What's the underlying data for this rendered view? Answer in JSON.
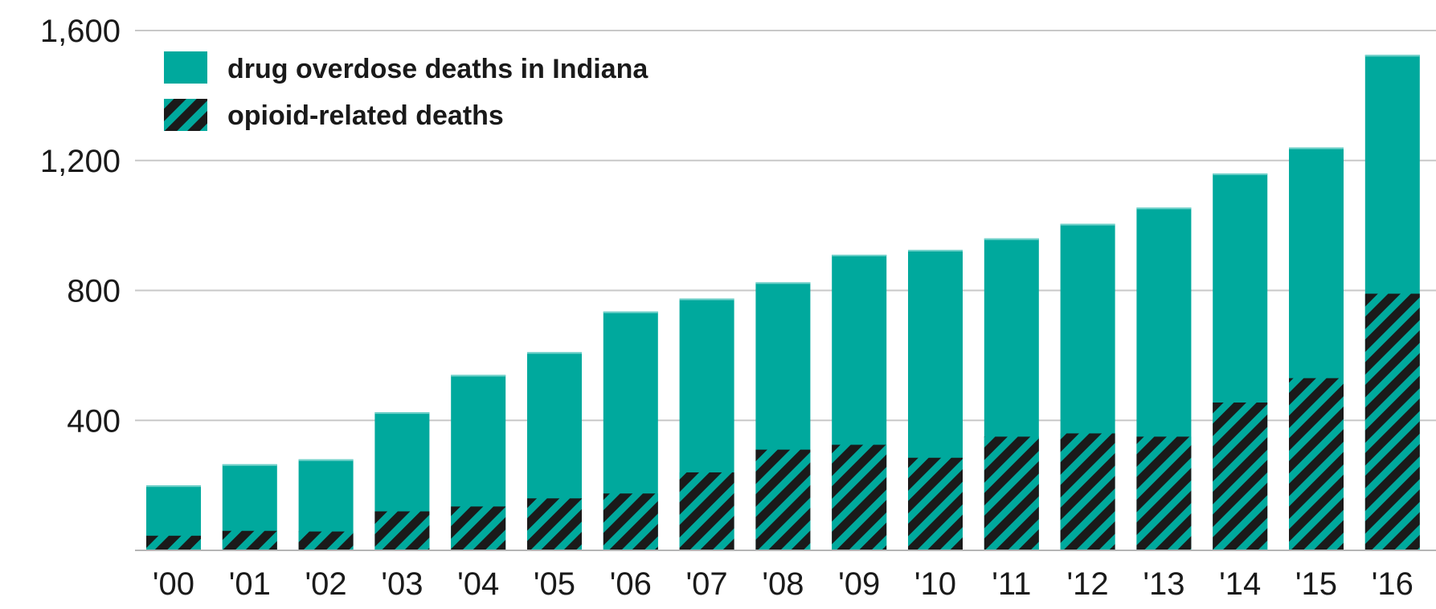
{
  "chart_data": {
    "type": "bar",
    "title": "",
    "xlabel": "",
    "ylabel": "",
    "categories": [
      "'00",
      "'01",
      "'02",
      "'03",
      "'04",
      "'05",
      "'06",
      "'07",
      "'08",
      "'09",
      "'10",
      "'11",
      "'12",
      "'13",
      "'14",
      "'15",
      "'16"
    ],
    "series": [
      {
        "name": "drug overdose deaths in Indiana",
        "color": "#00a99d",
        "pattern": "solid",
        "values": [
          200,
          265,
          280,
          425,
          540,
          610,
          735,
          775,
          825,
          910,
          925,
          960,
          1005,
          1055,
          1160,
          1240,
          1525
        ]
      },
      {
        "name": "opioid-related deaths",
        "color": "#1a1a1a",
        "pattern": "diagonal-hatch",
        "values": [
          45,
          60,
          58,
          120,
          135,
          160,
          175,
          240,
          310,
          325,
          285,
          350,
          360,
          350,
          455,
          530,
          790
        ]
      }
    ],
    "ylim": [
      0,
      1600
    ],
    "yticks": [
      "1,600",
      "1,200",
      "800",
      "400"
    ],
    "ytick_values": [
      1600,
      1200,
      800,
      400
    ],
    "grid": true,
    "overlay": true,
    "legend_position": "top-left"
  }
}
